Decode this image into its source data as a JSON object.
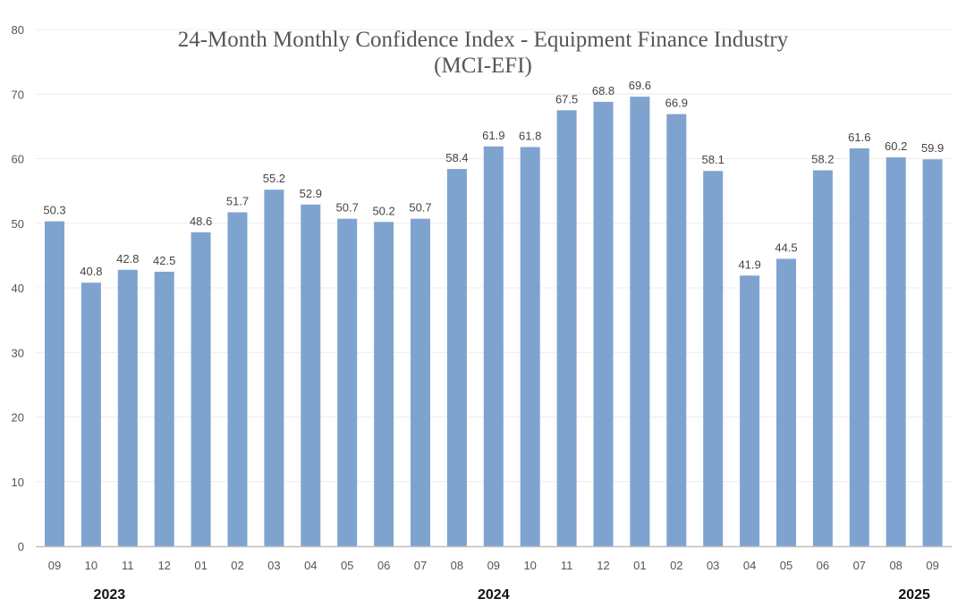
{
  "chart_data": {
    "type": "bar",
    "title": "24-Month Monthly Confidence Index - Equipment Finance Industry",
    "subtitle": "(MCI-EFI)",
    "categories": [
      "09",
      "10",
      "11",
      "12",
      "01",
      "02",
      "03",
      "04",
      "05",
      "06",
      "07",
      "08",
      "09",
      "10",
      "11",
      "12",
      "01",
      "02",
      "03",
      "04",
      "05",
      "06",
      "07",
      "08",
      "09"
    ],
    "year_labels": [
      {
        "label": "2023",
        "category_index": 1.5
      },
      {
        "label": "2024",
        "category_index": 12
      },
      {
        "label": "2025",
        "category_index": 23.5
      }
    ],
    "values": [
      50.3,
      40.8,
      42.8,
      42.5,
      48.6,
      51.7,
      55.2,
      52.9,
      50.7,
      50.2,
      50.7,
      58.4,
      61.9,
      61.8,
      67.5,
      68.8,
      69.6,
      66.9,
      58.1,
      41.9,
      44.5,
      58.2,
      61.6,
      60.2,
      59.9
    ],
    "ylim": [
      0,
      80
    ],
    "yticks": [
      0,
      10,
      20,
      30,
      40,
      50,
      60,
      70,
      80
    ],
    "xlabel": "",
    "ylabel": "",
    "grid": true,
    "data_labels": true,
    "bar_color": "#7fa3cf"
  }
}
